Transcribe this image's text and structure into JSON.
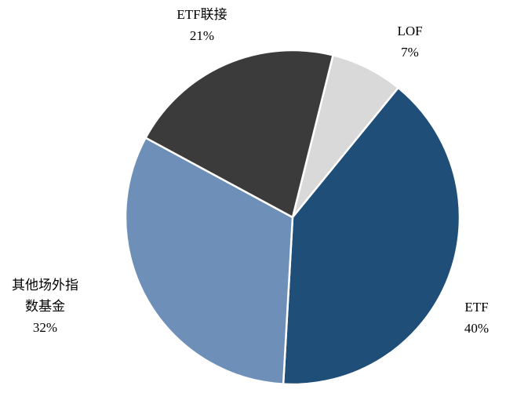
{
  "chart_data": {
    "type": "pie",
    "title": "",
    "unit": "%",
    "start_angle_deg": 14,
    "direction": "clockwise",
    "legend_position": "none",
    "labels_outside": true,
    "label_color": "#000000",
    "slice_border_color": "#ffffff",
    "slices": [
      {
        "id": "lof",
        "label": "LOF",
        "value": 7,
        "color": "#d9d9d9"
      },
      {
        "id": "etf",
        "label": "ETF",
        "value": 40,
        "color": "#1f4e79"
      },
      {
        "id": "other-otc-index",
        "label": "其他场外指数基金",
        "value": 32,
        "color": "#6e8fb8"
      },
      {
        "id": "etf-feeder",
        "label": "ETF联接",
        "value": 21,
        "color": "#3b3b3b"
      }
    ],
    "labels": {
      "etf_feeder": {
        "line1": "ETF联接",
        "line2": "21%"
      },
      "lof": {
        "line1": "LOF",
        "line2": "7%"
      },
      "etf": {
        "line1": "ETF",
        "line2": "40%"
      },
      "other_otc_index": {
        "line1": "其他场外指",
        "line2": "数基金",
        "line3": "32%"
      }
    }
  }
}
